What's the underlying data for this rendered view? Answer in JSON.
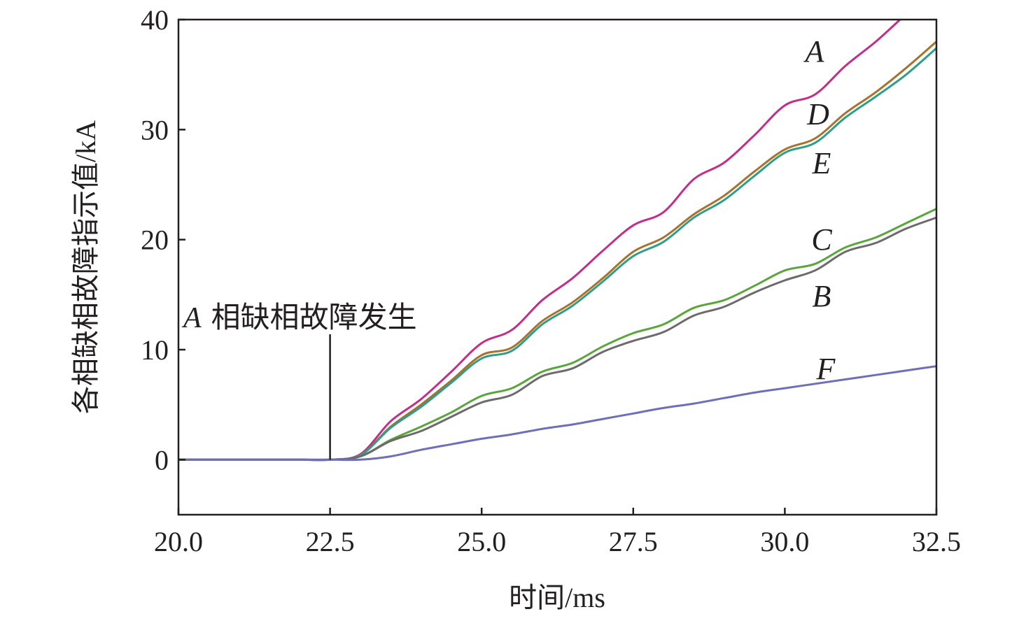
{
  "chart_data": {
    "type": "line",
    "title": "",
    "xlabel": "时间/ms",
    "ylabel": "各相缺相故障指示值/kA",
    "xlim": [
      20.0,
      32.5
    ],
    "ylim": [
      -5,
      40
    ],
    "xticks": [
      20.0,
      22.5,
      25.0,
      27.5,
      30.0,
      32.5
    ],
    "xtick_labels": [
      "20.0",
      "22.5",
      "25.0",
      "27.5",
      "30.0",
      "32.5"
    ],
    "yticks": [
      0,
      10,
      20,
      30,
      40
    ],
    "ytick_labels": [
      "0",
      "10",
      "20",
      "30",
      "40"
    ],
    "grid": false,
    "x": [
      20.0,
      20.5,
      21.0,
      21.5,
      22.0,
      22.5,
      23.0,
      23.5,
      24.0,
      24.5,
      25.0,
      25.5,
      26.0,
      26.5,
      27.0,
      27.5,
      28.0,
      28.5,
      29.0,
      29.5,
      30.0,
      30.5,
      31.0,
      31.5,
      32.0,
      32.5
    ],
    "series": [
      {
        "name": "A",
        "color": "#c42e8b",
        "values": [
          0,
          0,
          0,
          0,
          0,
          0,
          0.5,
          3.5,
          5.5,
          8.0,
          10.6,
          11.8,
          14.5,
          16.5,
          19.0,
          21.3,
          22.5,
          25.5,
          27.0,
          29.5,
          32.2,
          33.2,
          35.8,
          38.0,
          40.5,
          43.0
        ]
      },
      {
        "name": "D",
        "color": "#a8712e",
        "values": [
          0,
          0,
          0,
          0,
          0,
          0,
          0.4,
          3.0,
          5.0,
          7.2,
          9.5,
          10.2,
          12.6,
          14.3,
          16.5,
          18.9,
          20.2,
          22.3,
          24.0,
          26.2,
          28.2,
          29.2,
          31.5,
          33.4,
          35.6,
          38.0
        ]
      },
      {
        "name": "E",
        "color": "#2f9e87",
        "values": [
          0,
          0,
          0,
          0,
          0,
          0,
          0.4,
          2.9,
          4.8,
          7.0,
          9.2,
          9.9,
          12.3,
          14.0,
          16.2,
          18.5,
          19.8,
          22.0,
          23.6,
          25.8,
          27.9,
          28.8,
          31.1,
          33.0,
          35.0,
          37.4
        ]
      },
      {
        "name": "C",
        "color": "#5aa63c",
        "values": [
          0,
          0,
          0,
          0,
          0,
          0,
          0.3,
          1.8,
          3.0,
          4.3,
          5.8,
          6.5,
          8.0,
          8.8,
          10.3,
          11.5,
          12.3,
          13.8,
          14.5,
          15.8,
          17.2,
          17.8,
          19.3,
          20.2,
          21.5,
          22.8
        ]
      },
      {
        "name": "B",
        "color": "#6e6a6c",
        "values": [
          0,
          0,
          0,
          0,
          0,
          0,
          0.3,
          1.7,
          2.6,
          3.9,
          5.2,
          5.9,
          7.6,
          8.3,
          9.8,
          10.8,
          11.6,
          13.1,
          13.9,
          15.2,
          16.3,
          17.2,
          18.9,
          19.7,
          21.0,
          22.0
        ]
      },
      {
        "name": "F",
        "color": "#6e6fb8",
        "values": [
          0,
          0,
          0,
          0,
          0,
          0,
          0,
          0.3,
          0.9,
          1.4,
          1.9,
          2.3,
          2.8,
          3.2,
          3.7,
          4.2,
          4.7,
          5.1,
          5.6,
          6.1,
          6.5,
          6.9,
          7.3,
          7.7,
          8.1,
          8.5
        ]
      }
    ],
    "annotation": {
      "italic": "A",
      "text": "相缺相故障发生",
      "x": 22.5
    }
  }
}
